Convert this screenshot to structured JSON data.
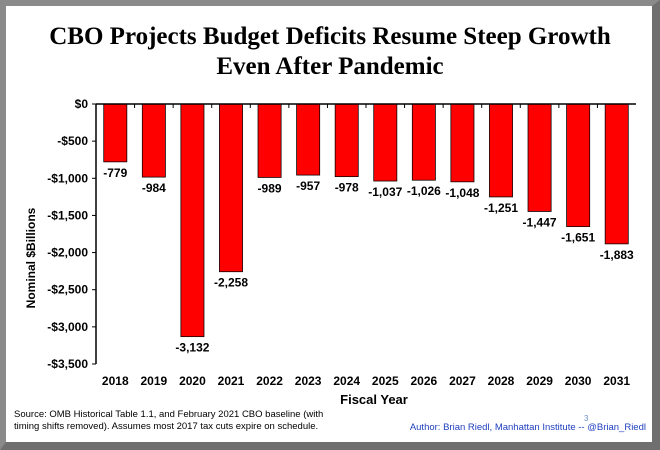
{
  "title_line1": "CBO Projects Budget Deficits Resume Steep Growth",
  "title_line2": "Even After Pandemic",
  "source_line1": "Source: OMB Historical Table 1.1, and February 2021 CBO baseline (with",
  "source_line2": "timing shifts removed). Assumes most 2017 tax cuts expire on schedule.",
  "author": "Author: Brian Riedl, Manhattan Institute -- @Brian_Riedl",
  "page_number": "3",
  "colors": {
    "bar": "#ff0000",
    "bar_edge": "#000000",
    "author_text": "#1f3fbf"
  },
  "chart_data": {
    "type": "bar",
    "categories": [
      "2018",
      "2019",
      "2020",
      "2021",
      "2022",
      "2023",
      "2024",
      "2025",
      "2026",
      "2027",
      "2028",
      "2029",
      "2030",
      "2031"
    ],
    "values": [
      -779,
      -984,
      -3132,
      -2258,
      -989,
      -957,
      -978,
      -1037,
      -1026,
      -1048,
      -1251,
      -1447,
      -1651,
      -1883
    ],
    "value_labels": [
      "-779",
      "-984",
      "-3,132",
      "-2,258",
      "-989",
      "-957",
      "-978",
      "-1,037",
      "-1,026",
      "-1,048",
      "-1,251",
      "-1,447",
      "-1,651",
      "-1,883"
    ],
    "xlabel": "Fiscal Year",
    "ylabel": "Nominal $Billions",
    "ylim": [
      -3500,
      0
    ],
    "yticks": [
      0,
      -500,
      -1000,
      -1500,
      -2000,
      -2500,
      -3000,
      -3500
    ],
    "ytick_labels": [
      "$0",
      "-$500",
      "-$1,000",
      "-$1,500",
      "-$2,000",
      "-$2,500",
      "-$3,000",
      "-$3,500"
    ],
    "grid": false,
    "legend": "none"
  }
}
